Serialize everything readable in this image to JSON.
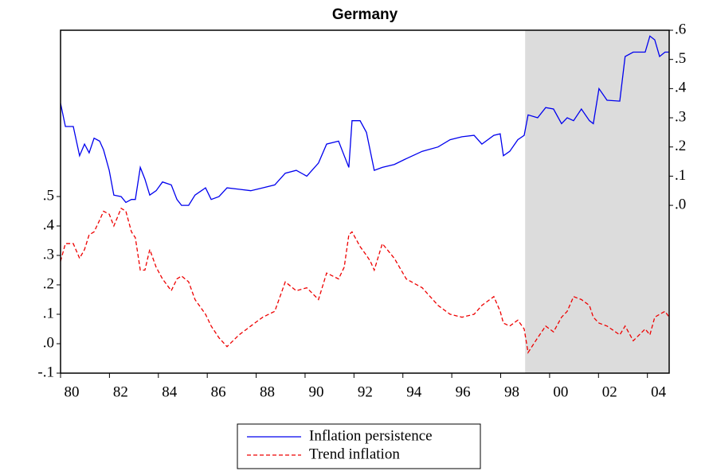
{
  "chart_data": {
    "type": "line",
    "title": "Germany",
    "x": [
      1980.0,
      1980.2,
      1980.52,
      1980.78,
      1980.98,
      1981.17,
      1981.37,
      1981.6,
      1981.76,
      1981.99,
      1982.18,
      1982.48,
      1982.67,
      1982.9,
      1983.06,
      1983.26,
      1983.45,
      1983.65,
      1983.91,
      1984.17,
      1984.53,
      1984.76,
      1984.95,
      1985.24,
      1985.5,
      1985.93,
      1986.16,
      1986.48,
      1986.81,
      1987.3,
      1987.78,
      1988.27,
      1988.76,
      1989.19,
      1989.64,
      1990.07,
      1990.55,
      1990.88,
      1991.37,
      1991.6,
      1991.79,
      1991.92,
      1992.25,
      1992.51,
      1992.67,
      1992.83,
      1993.16,
      1993.65,
      1994.14,
      1994.79,
      1995.44,
      1995.93,
      1996.42,
      1996.91,
      1997.23,
      1997.72,
      1997.98,
      1998.11,
      1998.37,
      1998.7,
      1998.96,
      1999.12,
      1999.51,
      1999.84,
      2000.16,
      2000.49,
      2000.72,
      2000.98,
      2001.3,
      2001.63,
      2001.79,
      2002.02,
      2002.35,
      2002.87,
      2003.09,
      2003.42,
      2003.91,
      2004.1,
      2004.3,
      2004.5,
      2004.72,
      2004.89
    ],
    "series": [
      {
        "name": "Inflation persistence",
        "color": "#0000ee",
        "axis": "y2",
        "dash": false,
        "values": [
          0.35,
          0.27,
          0.27,
          0.17,
          0.21,
          0.18,
          0.23,
          0.22,
          0.19,
          0.12,
          0.035,
          0.03,
          0.01,
          0.02,
          0.02,
          0.13,
          0.09,
          0.035,
          0.05,
          0.08,
          0.07,
          0.02,
          0.0,
          0.0,
          0.035,
          0.06,
          0.02,
          0.03,
          0.06,
          0.055,
          0.05,
          0.06,
          0.07,
          0.11,
          0.12,
          0.1,
          0.145,
          0.21,
          0.22,
          0.17,
          0.13,
          0.29,
          0.29,
          0.25,
          0.185,
          0.12,
          0.13,
          0.14,
          0.16,
          0.185,
          0.2,
          0.225,
          0.235,
          0.24,
          0.21,
          0.24,
          0.245,
          0.17,
          0.185,
          0.225,
          0.24,
          0.31,
          0.3,
          0.335,
          0.33,
          0.28,
          0.3,
          0.29,
          0.33,
          0.29,
          0.28,
          0.4,
          0.36,
          0.357,
          0.51,
          0.525,
          0.525,
          0.58,
          0.567,
          0.51,
          0.525,
          0.525
        ]
      },
      {
        "name": "Trend inflation",
        "color": "#ee0000",
        "axis": "y",
        "dash": true,
        "values": [
          0.28,
          0.34,
          0.34,
          0.29,
          0.32,
          0.37,
          0.38,
          0.42,
          0.45,
          0.44,
          0.4,
          0.46,
          0.45,
          0.38,
          0.36,
          0.25,
          0.25,
          0.32,
          0.26,
          0.22,
          0.18,
          0.22,
          0.23,
          0.21,
          0.15,
          0.1,
          0.06,
          0.02,
          -0.01,
          0.03,
          0.06,
          0.09,
          0.11,
          0.21,
          0.18,
          0.19,
          0.15,
          0.24,
          0.22,
          0.26,
          0.37,
          0.38,
          0.33,
          0.3,
          0.28,
          0.25,
          0.34,
          0.29,
          0.22,
          0.19,
          0.13,
          0.1,
          0.09,
          0.1,
          0.13,
          0.16,
          0.11,
          0.07,
          0.06,
          0.08,
          0.05,
          -0.03,
          0.02,
          0.06,
          0.04,
          0.09,
          0.11,
          0.16,
          0.15,
          0.13,
          0.09,
          0.07,
          0.06,
          0.03,
          0.06,
          0.01,
          0.05,
          0.03,
          0.09,
          0.1,
          0.11,
          0.09
        ]
      }
    ],
    "xlim": [
      1980.0,
      2004.89
    ],
    "xticks": [
      {
        "value": 1980,
        "label": "80"
      },
      {
        "value": 1982,
        "label": "82"
      },
      {
        "value": 1984,
        "label": "84"
      },
      {
        "value": 1986,
        "label": "86"
      },
      {
        "value": 1988,
        "label": "88"
      },
      {
        "value": 1990,
        "label": "90"
      },
      {
        "value": 1992,
        "label": "92"
      },
      {
        "value": 1994,
        "label": "94"
      },
      {
        "value": 1996,
        "label": "96"
      },
      {
        "value": 1998,
        "label": "98"
      },
      {
        "value": 2000,
        "label": "00"
      },
      {
        "value": 2002,
        "label": "02"
      },
      {
        "value": 2004,
        "label": "04"
      }
    ],
    "ylim": [
      -0.1,
      1.065
    ],
    "yticks": [
      {
        "value": -0.1,
        "label": "-.1"
      },
      {
        "value": 0,
        "label": ".0"
      },
      {
        "value": 0.1,
        "label": ".1"
      },
      {
        "value": 0.2,
        "label": ".2"
      },
      {
        "value": 0.3,
        "label": ".3"
      },
      {
        "value": 0.4,
        "label": ".4"
      },
      {
        "value": 0.5,
        "label": ".5"
      }
    ],
    "y2lim": [
      -0.575,
      0.6
    ],
    "y2ticks": [
      {
        "value": 0,
        "label": ".0"
      },
      {
        "value": 0.1,
        "label": ".1"
      },
      {
        "value": 0.2,
        "label": ".2"
      },
      {
        "value": 0.3,
        "label": ".3"
      },
      {
        "value": 0.4,
        "label": ".4"
      },
      {
        "value": 0.5,
        "label": ".5"
      },
      {
        "value": 0.6,
        "label": ".6"
      }
    ],
    "shaded_region": [
      1999.0,
      2004.89
    ]
  }
}
